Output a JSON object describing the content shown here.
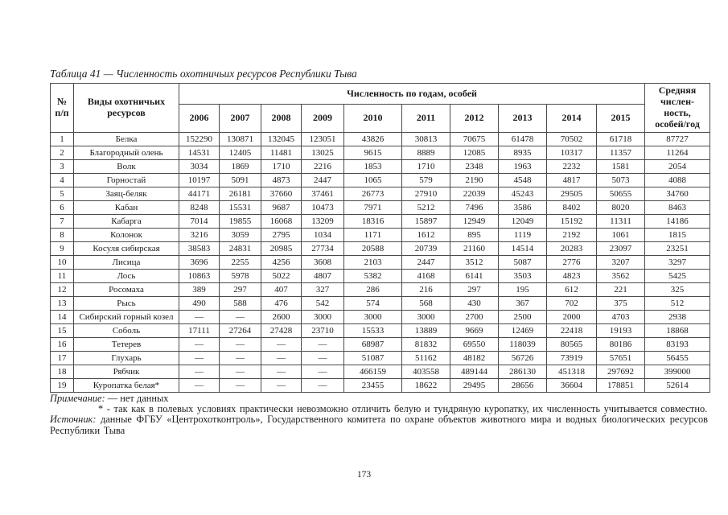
{
  "document": {
    "title": "Таблица 41 — Численность охотничьих ресурсов Республики Тыва",
    "page_number": "173"
  },
  "table": {
    "headers": {
      "num": "№\nп/п",
      "species": "Виды охотничьих\nресурсов",
      "years_group": "Численность по годам, особей",
      "years": [
        "2006",
        "2007",
        "2008",
        "2009",
        "2010",
        "2011",
        "2012",
        "2013",
        "2014",
        "2015"
      ],
      "average": "Средняя\nчислен-\nность,\nособей/год"
    },
    "no_data_symbol": "—",
    "rows": [
      {
        "num": "1",
        "name": "Белка",
        "values": [
          "152290",
          "130871",
          "132045",
          "123051",
          "43826",
          "30813",
          "70675",
          "61478",
          "70502",
          "61718"
        ],
        "average": "87727"
      },
      {
        "num": "2",
        "name": "Благородный олень",
        "values": [
          "14531",
          "12405",
          "11481",
          "13025",
          "9615",
          "8889",
          "12085",
          "8935",
          "10317",
          "11357"
        ],
        "average": "11264"
      },
      {
        "num": "3",
        "name": "Волк",
        "values": [
          "3034",
          "1869",
          "1710",
          "2216",
          "1853",
          "1710",
          "2348",
          "1963",
          "2232",
          "1581"
        ],
        "average": "2054"
      },
      {
        "num": "4",
        "name": "Горностай",
        "values": [
          "10197",
          "5091",
          "4873",
          "2447",
          "1065",
          "579",
          "2190",
          "4548",
          "4817",
          "5073"
        ],
        "average": "4088"
      },
      {
        "num": "5",
        "name": "Заяц-беляк",
        "values": [
          "44171",
          "26181",
          "37660",
          "37461",
          "26773",
          "27910",
          "22039",
          "45243",
          "29505",
          "50655"
        ],
        "average": "34760"
      },
      {
        "num": "6",
        "name": "Кабан",
        "values": [
          "8248",
          "15531",
          "9687",
          "10473",
          "7971",
          "5212",
          "7496",
          "3586",
          "8402",
          "8020"
        ],
        "average": "8463"
      },
      {
        "num": "7",
        "name": "Кабарга",
        "values": [
          "7014",
          "19855",
          "16068",
          "13209",
          "18316",
          "15897",
          "12949",
          "12049",
          "15192",
          "11311"
        ],
        "average": "14186"
      },
      {
        "num": "8",
        "name": "Колонок",
        "values": [
          "3216",
          "3059",
          "2795",
          "1034",
          "1171",
          "1612",
          "895",
          "1119",
          "2192",
          "1061"
        ],
        "average": "1815"
      },
      {
        "num": "9",
        "name": "Косуля сибирская",
        "values": [
          "38583",
          "24831",
          "20985",
          "27734",
          "20588",
          "20739",
          "21160",
          "14514",
          "20283",
          "23097"
        ],
        "average": "23251"
      },
      {
        "num": "10",
        "name": "Лисица",
        "values": [
          "3696",
          "2255",
          "4256",
          "3608",
          "2103",
          "2447",
          "3512",
          "5087",
          "2776",
          "3207"
        ],
        "average": "3297"
      },
      {
        "num": "11",
        "name": "Лось",
        "values": [
          "10863",
          "5978",
          "5022",
          "4807",
          "5382",
          "4168",
          "6141",
          "3503",
          "4823",
          "3562"
        ],
        "average": "5425"
      },
      {
        "num": "12",
        "name": "Росомаха",
        "values": [
          "389",
          "297",
          "407",
          "327",
          "286",
          "216",
          "297",
          "195",
          "612",
          "221"
        ],
        "average": "325"
      },
      {
        "num": "13",
        "name": "Рысь",
        "values": [
          "490",
          "588",
          "476",
          "542",
          "574",
          "568",
          "430",
          "367",
          "702",
          "375"
        ],
        "average": "512"
      },
      {
        "num": "14",
        "name": "Сибирский горный козел",
        "values": [
          "—",
          "—",
          "2600",
          "3000",
          "3000",
          "3000",
          "2700",
          "2500",
          "2000",
          "4703"
        ],
        "average": "2938"
      },
      {
        "num": "15",
        "name": "Соболь",
        "values": [
          "17111",
          "27264",
          "27428",
          "23710",
          "15533",
          "13889",
          "9669",
          "12469",
          "22418",
          "19193"
        ],
        "average": "18868"
      },
      {
        "num": "16",
        "name": "Тетерев",
        "values": [
          "—",
          "—",
          "—",
          "—",
          "68987",
          "81832",
          "69550",
          "118039",
          "80565",
          "80186"
        ],
        "average": "83193"
      },
      {
        "num": "17",
        "name": "Глухарь",
        "values": [
          "—",
          "—",
          "—",
          "—",
          "51087",
          "51162",
          "48182",
          "56726",
          "73919",
          "57651"
        ],
        "average": "56455"
      },
      {
        "num": "18",
        "name": "Рябчик",
        "values": [
          "—",
          "—",
          "—",
          "—",
          "466159",
          "403558",
          "489144",
          "286130",
          "451318",
          "297692"
        ],
        "average": "399000"
      },
      {
        "num": "19",
        "name": "Куропатка белая*",
        "values": [
          "—",
          "—",
          "—",
          "—",
          "23455",
          "18622",
          "29495",
          "28656",
          "36604",
          "178851"
        ],
        "average": "52614"
      }
    ]
  },
  "notes": {
    "note_label": "Примечание:",
    "no_data_note": "— нет данных",
    "asterisk_note": "* - так как в полевых условиях практически невозможно отличить белую и тундряную куропатку, их численность учитывается совместно.",
    "source_label": "Источник:",
    "source_text": "данные ФГБУ «Центрохотконтроль», Государственного комитета по охране объектов животного мира и водных биологических ресурсов Республики Тыва"
  }
}
